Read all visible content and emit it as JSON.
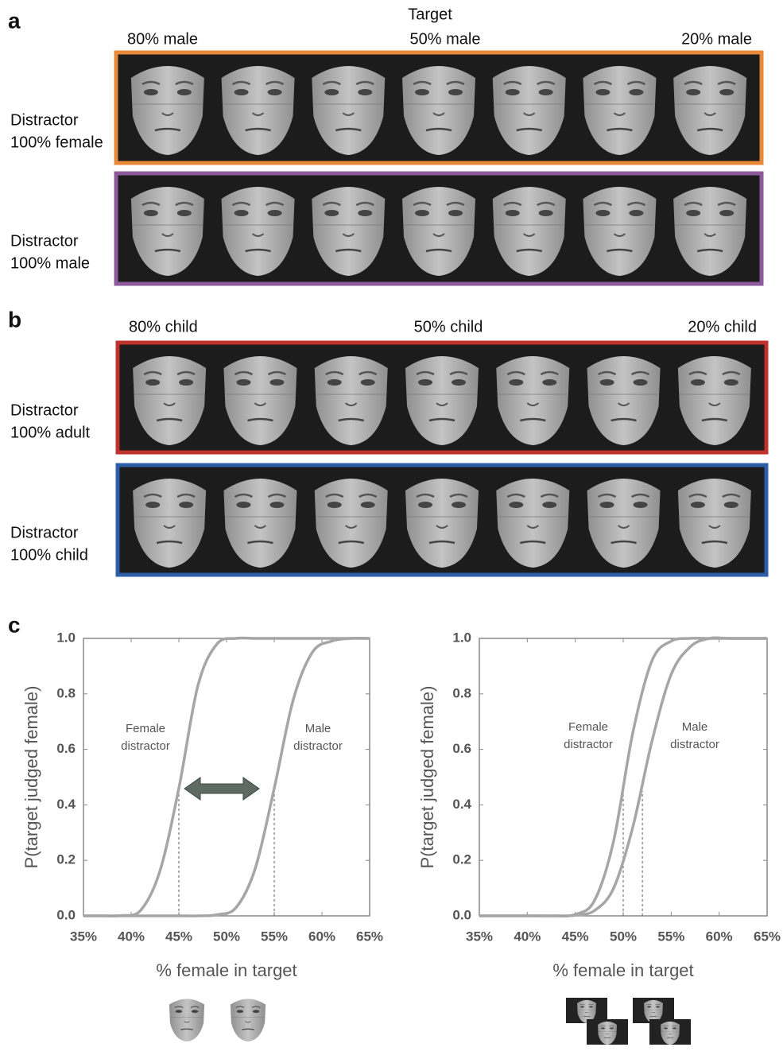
{
  "panel_a": {
    "label": "a",
    "header": "Target",
    "columns": [
      "80% male",
      "50% male",
      "20% male"
    ],
    "rows": [
      {
        "lines": [
          "Distractor",
          "100% female"
        ],
        "color": "#e8893a"
      },
      {
        "lines": [
          "Distractor",
          "100% male"
        ],
        "color": "#8e5a9c"
      }
    ]
  },
  "panel_b": {
    "label": "b",
    "columns": [
      "80% child",
      "50% child",
      "20% child"
    ],
    "rows": [
      {
        "lines": [
          "Distractor",
          "100% adult"
        ],
        "color": "#c0322c"
      },
      {
        "lines": [
          "Distractor",
          "100% child"
        ],
        "color": "#2e5ea8"
      }
    ]
  },
  "panel_c": {
    "label": "c"
  },
  "chart_data": [
    {
      "type": "line",
      "xlabel": "% female in target",
      "ylabel": "P(target judged female)",
      "xlim": [
        35,
        65
      ],
      "ylim": [
        0,
        1
      ],
      "xticks": [
        {
          "value": 35,
          "label": "35%"
        },
        {
          "value": 40,
          "label": "40%"
        },
        {
          "value": 45,
          "label": "45%"
        },
        {
          "value": 50,
          "label": "50%"
        },
        {
          "value": 55,
          "label": "55%"
        },
        {
          "value": 60,
          "label": "60%"
        },
        {
          "value": 65,
          "label": "65%"
        }
      ],
      "yticks": [
        {
          "value": 0,
          "label": "0.0"
        },
        {
          "value": 0.2,
          "label": "0.2"
        },
        {
          "value": 0.4,
          "label": "0.4"
        },
        {
          "value": 0.6,
          "label": "0.6"
        },
        {
          "value": 0.8,
          "label": "0.8"
        },
        {
          "value": 1,
          "label": "1.0"
        }
      ],
      "x": [
        35,
        37,
        39,
        41,
        43,
        45,
        47,
        49,
        51,
        53,
        55,
        57,
        59,
        61,
        63,
        65
      ],
      "series": [
        {
          "color": "#a6a6a6",
          "values": [
            0,
            0,
            0.001,
            0.02,
            0.16,
            0.46,
            0.83,
            0.98,
            1,
            1,
            1,
            1,
            1,
            1,
            1,
            1
          ]
        },
        {
          "color": "#a6a6a6",
          "values": [
            0,
            0,
            0,
            0,
            0,
            0,
            0,
            0.004,
            0.03,
            0.17,
            0.46,
            0.78,
            0.95,
            0.99,
            1,
            1
          ]
        }
      ],
      "dashed_lines": [
        {
          "x": 45,
          "y": 0.46
        },
        {
          "x": 55,
          "y": 0.46
        }
      ],
      "annotations": [
        {
          "lines": [
            "Female",
            "distractor"
          ]
        },
        {
          "lines": [
            "Male",
            "distractor"
          ]
        }
      ]
    },
    {
      "type": "line",
      "xlabel": "% female in target",
      "ylabel": "P(target judged female)",
      "xlim": [
        35,
        65
      ],
      "ylim": [
        0,
        1
      ],
      "xticks": [
        {
          "value": 35,
          "label": "35%"
        },
        {
          "value": 40,
          "label": "40%"
        },
        {
          "value": 45,
          "label": "45%"
        },
        {
          "value": 50,
          "label": "50%"
        },
        {
          "value": 55,
          "label": "55%"
        },
        {
          "value": 60,
          "label": "60%"
        },
        {
          "value": 65,
          "label": "65%"
        }
      ],
      "yticks": [
        {
          "value": 0,
          "label": "0.0"
        },
        {
          "value": 0.2,
          "label": "0.2"
        },
        {
          "value": 0.4,
          "label": "0.4"
        },
        {
          "value": 0.6,
          "label": "0.6"
        },
        {
          "value": 0.8,
          "label": "0.8"
        },
        {
          "value": 1,
          "label": "1.0"
        }
      ],
      "x": [
        35,
        37,
        39,
        41,
        43,
        45,
        47,
        49,
        51,
        53,
        55,
        57,
        59,
        61,
        63,
        65
      ],
      "series": [
        {
          "color": "#a6a6a6",
          "values": [
            0,
            0,
            0,
            0,
            0,
            0.005,
            0.055,
            0.27,
            0.66,
            0.92,
            0.99,
            1,
            1,
            1,
            1,
            1
          ]
        },
        {
          "color": "#a6a6a6",
          "values": [
            0,
            0,
            0,
            0,
            0,
            0.002,
            0.019,
            0.1,
            0.32,
            0.63,
            0.87,
            0.97,
            1,
            1,
            1,
            1
          ]
        }
      ],
      "dashed_lines": [
        {
          "x": 50,
          "y": 0.46
        },
        {
          "x": 52,
          "y": 0.45
        }
      ],
      "annotations": [
        {
          "lines": [
            "Female",
            "distractor"
          ]
        },
        {
          "lines": [
            "Male",
            "distractor"
          ]
        }
      ]
    }
  ]
}
